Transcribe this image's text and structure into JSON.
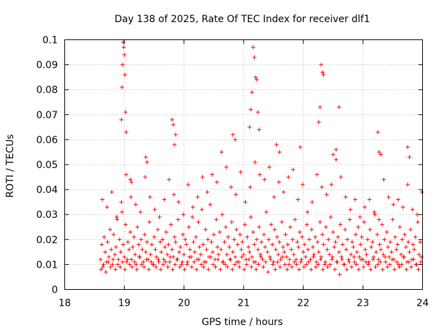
{
  "chart_data": {
    "type": "scatter",
    "title": "Day 138 of 2025, Rate Of TEC Index for receiver dlf1",
    "xlabel": "GPS time / hours",
    "ylabel": "ROTI / TECUs",
    "xlim": [
      18,
      24
    ],
    "ylim": [
      0,
      0.1
    ],
    "x_ticks": [
      "18",
      "19",
      "20",
      "21",
      "22",
      "23",
      "24"
    ],
    "y_ticks": [
      "0",
      "0.01",
      "0.02",
      "0.03",
      "0.04",
      "0.05",
      "0.06",
      "0.07",
      "0.08",
      "0.09",
      "0.1"
    ],
    "grid": true,
    "marker": "+",
    "color": "#ff0000",
    "series": [
      {
        "name": "ROTI",
        "x": [
          18.6,
          18.62,
          18.64,
          18.66,
          18.68,
          18.7,
          18.72,
          18.74,
          18.76,
          18.78,
          18.8,
          18.82,
          18.84,
          18.86,
          18.88,
          18.9,
          18.92,
          18.94,
          18.96,
          18.98,
          19.0,
          19.02,
          19.04,
          19.06,
          19.08,
          19.1,
          19.12,
          19.14,
          19.16,
          19.18,
          19.2,
          19.22,
          19.24,
          19.26,
          19.28,
          19.3,
          19.32,
          19.34,
          19.36,
          19.38,
          19.4,
          19.42,
          19.44,
          19.46,
          19.48,
          19.5,
          19.52,
          19.54,
          19.56,
          19.58,
          19.6,
          19.62,
          19.64,
          19.66,
          19.68,
          19.7,
          19.72,
          19.74,
          19.76,
          19.78,
          19.8,
          19.82,
          19.84,
          19.86,
          19.88,
          19.9,
          19.92,
          19.94,
          19.96,
          19.98,
          20.0,
          20.02,
          20.04,
          20.06,
          20.08,
          20.1,
          20.12,
          20.14,
          20.16,
          20.18,
          20.2,
          20.22,
          20.24,
          20.26,
          20.28,
          20.3,
          20.32,
          20.34,
          20.36,
          20.38,
          20.4,
          20.42,
          20.44,
          20.46,
          20.48,
          20.5,
          20.52,
          20.54,
          20.56,
          20.58,
          20.6,
          20.62,
          20.64,
          20.66,
          20.68,
          20.7,
          20.72,
          20.74,
          20.76,
          20.78,
          20.8,
          20.82,
          20.84,
          20.86,
          20.88,
          20.9,
          20.92,
          20.94,
          20.96,
          20.98,
          21.0,
          21.02,
          21.04,
          21.06,
          21.08,
          21.1,
          21.12,
          21.14,
          21.16,
          21.18,
          21.2,
          21.22,
          21.24,
          21.26,
          21.28,
          21.3,
          21.32,
          21.34,
          21.36,
          21.38,
          21.4,
          21.42,
          21.44,
          21.46,
          21.48,
          21.5,
          21.52,
          21.54,
          21.56,
          21.58,
          21.6,
          21.62,
          21.64,
          21.66,
          21.68,
          21.7,
          21.72,
          21.74,
          21.76,
          21.78,
          21.8,
          21.82,
          21.84,
          21.86,
          21.88,
          21.9,
          21.92,
          21.94,
          21.96,
          21.98,
          22.0,
          22.02,
          22.04,
          22.06,
          22.08,
          22.1,
          22.12,
          22.14,
          22.16,
          22.18,
          22.2,
          22.22,
          22.24,
          22.26,
          22.28,
          22.3,
          22.32,
          22.34,
          22.36,
          22.38,
          22.4,
          22.42,
          22.44,
          22.46,
          22.48,
          22.5,
          22.52,
          22.54,
          22.56,
          22.58,
          22.6,
          22.62,
          22.64,
          22.66,
          22.68,
          22.7,
          22.72,
          22.74,
          22.76,
          22.78,
          22.8,
          22.82,
          22.84,
          22.86,
          22.88,
          22.9,
          22.92,
          22.94,
          22.96,
          22.98,
          23.0,
          23.02,
          23.04,
          23.06,
          23.08,
          23.1,
          23.12,
          23.14,
          23.16,
          23.18,
          23.2,
          23.22,
          23.24,
          23.26,
          23.28,
          23.3,
          23.32,
          23.34,
          23.36,
          23.38,
          23.4,
          23.42,
          23.44,
          23.46,
          23.48,
          23.5,
          23.52,
          23.54,
          23.56,
          23.58,
          23.6,
          23.62,
          23.64,
          23.66,
          23.68,
          23.7,
          23.72,
          23.74,
          23.76,
          23.78,
          23.8,
          23.82,
          23.84,
          23.86,
          23.88,
          23.9,
          23.92,
          23.94,
          23.96,
          23.98,
          18.61,
          18.65,
          18.69,
          18.73,
          18.77,
          18.81,
          18.85,
          18.89,
          18.93,
          18.97,
          19.01,
          19.05,
          19.09,
          19.13,
          19.17,
          19.21,
          19.25,
          19.29,
          19.33,
          19.37,
          19.41,
          19.45,
          19.49,
          19.53,
          19.57,
          19.61,
          19.65,
          19.69,
          19.73,
          19.77,
          19.81,
          19.85,
          19.89,
          19.93,
          19.97,
          20.01,
          20.05,
          20.09,
          20.13,
          20.17,
          20.21,
          20.25,
          20.29,
          20.33,
          20.37,
          20.41,
          20.45,
          20.49,
          20.53,
          20.57,
          20.61,
          20.65,
          20.69,
          20.73,
          20.77,
          20.81,
          20.85,
          20.89,
          20.93,
          20.97,
          21.01,
          21.05,
          21.09,
          21.13,
          21.17,
          21.21,
          21.25,
          21.29,
          21.33,
          21.37,
          21.41,
          21.45,
          21.49,
          21.53,
          21.57,
          21.61,
          21.65,
          21.69,
          21.73,
          21.77,
          21.81,
          21.85,
          21.89,
          21.93,
          21.97,
          22.01,
          22.05,
          22.09,
          22.13,
          22.17,
          22.21,
          22.25,
          22.29,
          22.33,
          22.37,
          22.41,
          22.45,
          22.49,
          22.53,
          22.57,
          22.61,
          22.65,
          22.69,
          22.73,
          22.77,
          22.81,
          22.85,
          22.89,
          22.93,
          22.97,
          23.01,
          23.05,
          23.09,
          23.13,
          23.17,
          23.21,
          23.25,
          23.29,
          23.33,
          23.37,
          23.41,
          23.45,
          23.49,
          23.53,
          23.57,
          23.61,
          23.65,
          23.69,
          23.73,
          23.77,
          23.81,
          23.85,
          23.89,
          23.93,
          23.97,
          18.98,
          18.99,
          19.0,
          18.97,
          18.96,
          19.01,
          19.02,
          18.95,
          19.03,
          19.1,
          19.12,
          19.36,
          19.38,
          19.8,
          19.82,
          19.84,
          19.86,
          20.82,
          20.86,
          21.16,
          21.18,
          21.2,
          21.22,
          21.24,
          21.14,
          21.12,
          21.1,
          21.26,
          21.55,
          21.6,
          21.95,
          22.3,
          22.32,
          22.34,
          22.28,
          22.26,
          22.6,
          22.55,
          22.5,
          23.25,
          23.27,
          23.3,
          23.75,
          23.78,
          23.99,
          18.63,
          18.71,
          18.79,
          18.87,
          18.95,
          19.03,
          19.11,
          19.19,
          19.27,
          19.35,
          19.43,
          19.51,
          19.59,
          19.67,
          19.75,
          19.83,
          19.91,
          19.99,
          20.07,
          20.15,
          20.23,
          20.31,
          20.39,
          20.47,
          20.55,
          20.63,
          20.71,
          20.79,
          20.87,
          20.95,
          21.03,
          21.11,
          21.19,
          21.27,
          21.35,
          21.43,
          21.51,
          21.59,
          21.67,
          21.75,
          21.83,
          21.91,
          21.99,
          22.07,
          22.15,
          22.23,
          22.31,
          22.39,
          22.47,
          22.55,
          22.63,
          22.71,
          22.79,
          22.87,
          22.95,
          23.03,
          23.11,
          23.19,
          23.27,
          23.35,
          23.43,
          23.51,
          23.59,
          23.67,
          23.75,
          23.83,
          23.91
        ],
        "y": [
          0.012,
          0.018,
          0.009,
          0.021,
          0.015,
          0.011,
          0.019,
          0.013,
          0.024,
          0.016,
          0.01,
          0.022,
          0.014,
          0.017,
          0.028,
          0.012,
          0.02,
          0.015,
          0.031,
          0.018,
          0.013,
          0.026,
          0.011,
          0.019,
          0.016,
          0.023,
          0.012,
          0.017,
          0.021,
          0.014,
          0.01,
          0.025,
          0.018,
          0.013,
          0.02,
          0.016,
          0.011,
          0.022,
          0.015,
          0.019,
          0.012,
          0.027,
          0.014,
          0.018,
          0.01,
          0.021,
          0.016,
          0.013,
          0.024,
          0.011,
          0.019,
          0.015,
          0.02,
          0.012,
          0.017,
          0.023,
          0.014,
          0.018,
          0.011,
          0.026,
          0.016,
          0.013,
          0.021,
          0.019,
          0.012,
          0.028,
          0.015,
          0.017,
          0.01,
          0.022,
          0.014,
          0.02,
          0.018,
          0.011,
          0.025,
          0.016,
          0.013,
          0.029,
          0.019,
          0.015,
          0.021,
          0.012,
          0.027,
          0.017,
          0.014,
          0.032,
          0.018,
          0.011,
          0.024,
          0.016,
          0.02,
          0.013,
          0.034,
          0.019,
          0.015,
          0.022,
          0.012,
          0.028,
          0.017,
          0.014,
          0.023,
          0.016,
          0.03,
          0.011,
          0.019,
          0.025,
          0.014,
          0.021,
          0.017,
          0.012,
          0.027,
          0.015,
          0.02,
          0.013,
          0.024,
          0.018,
          0.011,
          0.022,
          0.016,
          0.019,
          0.014,
          0.026,
          0.012,
          0.021,
          0.017,
          0.015,
          0.029,
          0.013,
          0.023,
          0.018,
          0.011,
          0.02,
          0.016,
          0.025,
          0.014,
          0.019,
          0.012,
          0.022,
          0.017,
          0.031,
          0.015,
          0.02,
          0.013,
          0.026,
          0.018,
          0.011,
          0.024,
          0.016,
          0.021,
          0.014,
          0.019,
          0.012,
          0.027,
          0.017,
          0.015,
          0.022,
          0.013,
          0.018,
          0.01,
          0.025,
          0.016,
          0.02,
          0.014,
          0.028,
          0.012,
          0.019,
          0.017,
          0.023,
          0.011,
          0.021,
          0.015,
          0.018,
          0.013,
          0.026,
          0.016,
          0.02,
          0.012,
          0.024,
          0.017,
          0.014,
          0.021,
          0.011,
          0.019,
          0.015,
          0.027,
          0.013,
          0.022,
          0.018,
          0.01,
          0.025,
          0.016,
          0.02,
          0.014,
          0.029,
          0.012,
          0.023,
          0.017,
          0.019,
          0.011,
          0.021,
          0.015,
          0.026,
          0.013,
          0.018,
          0.01,
          0.024,
          0.016,
          0.02,
          0.012,
          0.028,
          0.014,
          0.019,
          0.017,
          0.011,
          0.022,
          0.015,
          0.025,
          0.013,
          0.018,
          0.021,
          0.012,
          0.027,
          0.016,
          0.014,
          0.02,
          0.011,
          0.024,
          0.017,
          0.019,
          0.013,
          0.03,
          0.015,
          0.022,
          0.012,
          0.018,
          0.016,
          0.026,
          0.014,
          0.02,
          0.011,
          0.023,
          0.017,
          0.013,
          0.019,
          0.015,
          0.028,
          0.012,
          0.021,
          0.016,
          0.018,
          0.01,
          0.025,
          0.014,
          0.02,
          0.013,
          0.022,
          0.017,
          0.011,
          0.019,
          0.015,
          0.024,
          0.012,
          0.018,
          0.016,
          0.021,
          0.01,
          0.027,
          0.014,
          0.019,
          0.013,
          0.008,
          0.01,
          0.007,
          0.011,
          0.009,
          0.012,
          0.008,
          0.01,
          0.009,
          0.011,
          0.008,
          0.012,
          0.01,
          0.009,
          0.011,
          0.008,
          0.013,
          0.01,
          0.009,
          0.012,
          0.008,
          0.011,
          0.01,
          0.009,
          0.012,
          0.008,
          0.01,
          0.011,
          0.009,
          0.013,
          0.008,
          0.01,
          0.012,
          0.009,
          0.011,
          0.008,
          0.01,
          0.013,
          0.009,
          0.011,
          0.008,
          0.012,
          0.01,
          0.009,
          0.011,
          0.008,
          0.013,
          0.01,
          0.009,
          0.012,
          0.008,
          0.011,
          0.01,
          0.009,
          0.012,
          0.008,
          0.01,
          0.011,
          0.009,
          0.013,
          0.008,
          0.01,
          0.012,
          0.009,
          0.011,
          0.008,
          0.01,
          0.013,
          0.009,
          0.011,
          0.007,
          0.012,
          0.01,
          0.008,
          0.011,
          0.009,
          0.013,
          0.01,
          0.008,
          0.012,
          0.009,
          0.011,
          0.01,
          0.008,
          0.012,
          0.009,
          0.01,
          0.011,
          0.008,
          0.013,
          0.009,
          0.01,
          0.012,
          0.008,
          0.011,
          0.009,
          0.01,
          0.013,
          0.008,
          0.011,
          0.006,
          0.012,
          0.01,
          0.008,
          0.011,
          0.009,
          0.013,
          0.01,
          0.008,
          0.012,
          0.009,
          0.011,
          0.01,
          0.008,
          0.012,
          0.009,
          0.01,
          0.011,
          0.008,
          0.013,
          0.009,
          0.01,
          0.012,
          0.008,
          0.011,
          0.009,
          0.01,
          0.013,
          0.008,
          0.011,
          0.009,
          0.012,
          0.01,
          0.008,
          0.011,
          0.099,
          0.097,
          0.094,
          0.09,
          0.081,
          0.086,
          0.071,
          0.068,
          0.063,
          0.044,
          0.043,
          0.053,
          0.051,
          0.068,
          0.066,
          0.058,
          0.062,
          0.062,
          0.06,
          0.097,
          0.093,
          0.085,
          0.084,
          0.071,
          0.079,
          0.072,
          0.065,
          0.064,
          0.058,
          0.055,
          0.057,
          0.09,
          0.087,
          0.086,
          0.073,
          0.067,
          0.073,
          0.056,
          0.054,
          0.063,
          0.055,
          0.054,
          0.057,
          0.053,
          0.039,
          0.036,
          0.033,
          0.039,
          0.029,
          0.035,
          0.046,
          0.037,
          0.034,
          0.031,
          0.045,
          0.037,
          0.032,
          0.029,
          0.036,
          0.044,
          0.038,
          0.035,
          0.03,
          0.042,
          0.033,
          0.037,
          0.045,
          0.039,
          0.046,
          0.043,
          0.055,
          0.049,
          0.041,
          0.038,
          0.047,
          0.035,
          0.041,
          0.051,
          0.046,
          0.044,
          0.049,
          0.037,
          0.043,
          0.039,
          0.045,
          0.048,
          0.036,
          0.042,
          0.031,
          0.035,
          0.046,
          0.041,
          0.038,
          0.042,
          0.052,
          0.045,
          0.037,
          0.032,
          0.036,
          0.029,
          0.033,
          0.036,
          0.031,
          0.028,
          0.044,
          0.037,
          0.034,
          0.036,
          0.033,
          0.042,
          0.032,
          0.03
        ]
      }
    ]
  }
}
